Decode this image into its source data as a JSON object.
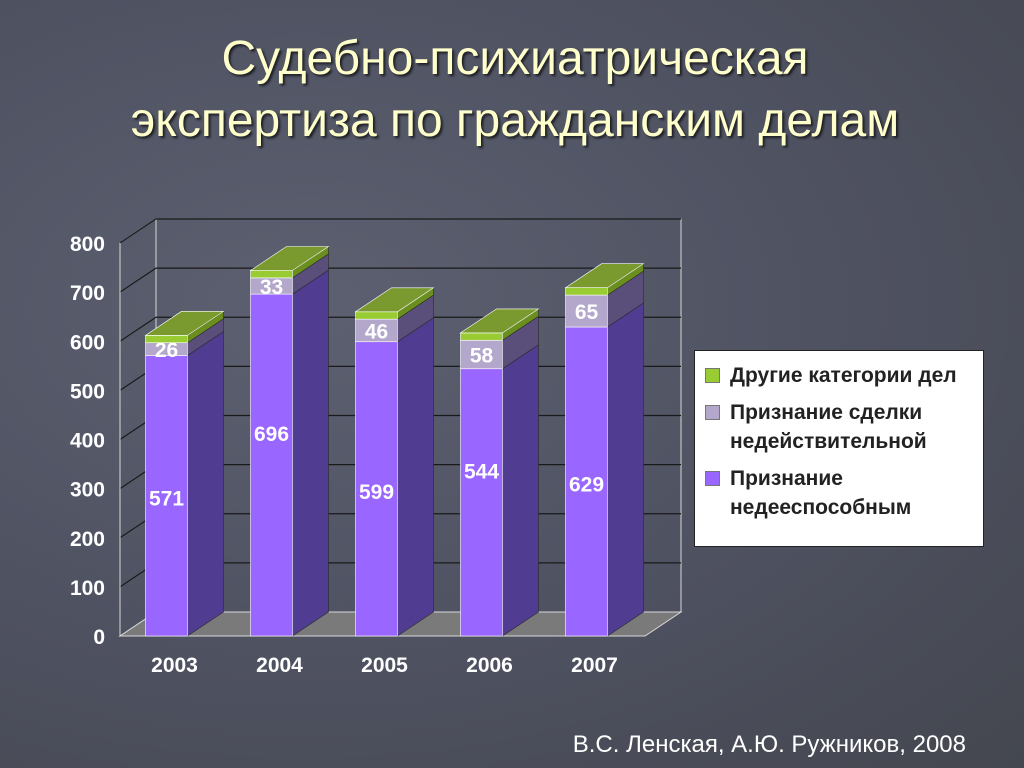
{
  "title_lines": [
    "Судебно-психиатрическая",
    "экспертиза по гражданским делам"
  ],
  "credit": "В.С. Ленская, А.Ю. Ружников, 2008",
  "chart_data": {
    "type": "bar",
    "stacked": true,
    "three_d": true,
    "categories": [
      "2003",
      "2004",
      "2005",
      "2006",
      "2007"
    ],
    "series": [
      {
        "name": "Признание недееспособным",
        "values": [
          571,
          696,
          599,
          544,
          629
        ],
        "color": "#9966ff",
        "side_color": "#503c90",
        "labels": [
          "571",
          "696",
          "599",
          "544",
          "629"
        ]
      },
      {
        "name": "Признание сделки недействительной",
        "values": [
          26,
          33,
          46,
          58,
          65
        ],
        "color": "#b3a8cc",
        "side_color": "#5a4e7a",
        "labels": [
          "26",
          "33",
          "46",
          "58",
          "65"
        ]
      },
      {
        "name": "Другие категории дел",
        "values": [
          15,
          15,
          15,
          15,
          15
        ],
        "color": "#99cc33",
        "side_color": "#6a8f1e",
        "top_color": "#7a9a30",
        "labels": []
      }
    ],
    "y_ticks": [
      "0",
      "100",
      "200",
      "300",
      "400",
      "500",
      "600",
      "700",
      "800"
    ],
    "ylim": [
      0,
      800
    ],
    "grid": true,
    "legend": "right",
    "legend_order": [
      "Другие категории дел",
      "Признание сделки недействительной",
      "Признание недееспособным"
    ]
  },
  "legend_items": [
    {
      "label": "Другие категории дел",
      "color": "#99cc33"
    },
    {
      "label": "Признание сделки недействительной",
      "color": "#b3a8cc"
    },
    {
      "label": "Признание недееспособным",
      "color": "#9966ff"
    }
  ]
}
